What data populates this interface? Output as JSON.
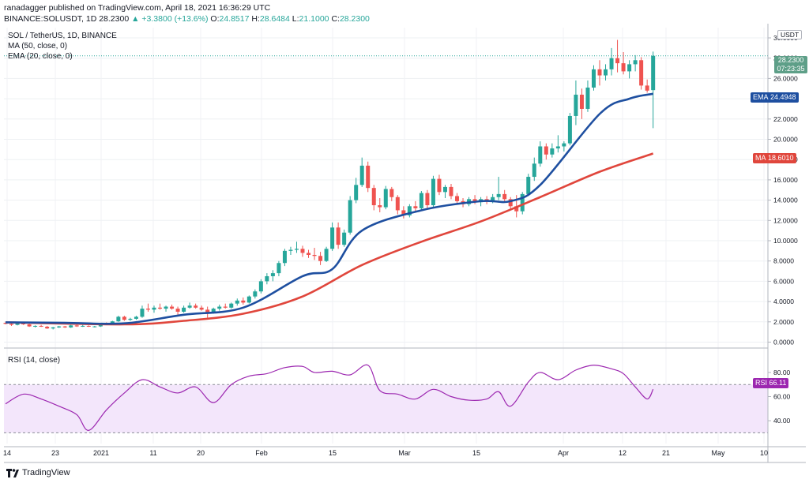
{
  "header": {
    "line1": "ranadagger published on TradingView.com, April 18, 2021 16:36:29 UTC",
    "symbol": "BINANCE:SOLUSDT, 1D",
    "last": "28.2300",
    "change": "+3.3800 (+13.6%)",
    "open": "24.8517",
    "high": "28.6484",
    "low": "21.1000",
    "close": "28.2300",
    "o_label": "O:",
    "h_label": "H:",
    "l_label": "L:",
    "c_label": "C:"
  },
  "legend": {
    "title": "SOL / TetherUS, 1D, BINANCE",
    "ma": "MA (50, close, 0)",
    "ema": "EMA (20, close, 0)",
    "rsi": "RSI (14, close)"
  },
  "price_axis": {
    "currency": "USDT",
    "labels": [
      "30.0000",
      "28.0000",
      "26.0000",
      "24.0000",
      "22.0000",
      "20.0000",
      "18.0000",
      "16.0000",
      "14.0000",
      "12.0000",
      "10.0000",
      "8.0000",
      "6.0000",
      "4.0000",
      "2.0000",
      "0.0000"
    ]
  },
  "tags": {
    "price_value": "28.2300",
    "countdown": "07:23:35",
    "ema_label": "EMA",
    "ema_value": "24.4948",
    "ma_label": "MA",
    "ma_value": "18.6010",
    "rsi_label": "RSI",
    "rsi_value": "66.11"
  },
  "rsi_axis": {
    "labels": [
      "80.00",
      "60.00",
      "40.00"
    ]
  },
  "time_axis": {
    "labels": [
      "14",
      "23",
      "2021",
      "11",
      "20",
      "Feb",
      "15",
      "Mar",
      "15",
      "Apr",
      "12",
      "21",
      "May",
      "10"
    ]
  },
  "footer": {
    "brand": "TradingView"
  },
  "colors": {
    "up": "#26a69a",
    "down": "#ef5350",
    "ema": "#1e4fa0",
    "ma": "#e0463c",
    "rsi": "#9c27b0",
    "rsi_band": "#f3e6fb"
  },
  "chart_data": [
    {
      "type": "candlestick",
      "title": "SOL / TetherUS, 1D, BINANCE",
      "x_range": [
        "2020-12-14",
        "2021-05-10"
      ],
      "ylim": [
        0,
        30
      ],
      "candles_ohlc": [
        [
          1.9,
          1.95,
          1.75,
          1.8
        ],
        [
          1.8,
          1.85,
          1.6,
          1.7
        ],
        [
          1.7,
          1.9,
          1.65,
          1.85
        ],
        [
          1.85,
          1.9,
          1.7,
          1.75
        ],
        [
          1.75,
          1.8,
          1.5,
          1.55
        ],
        [
          1.55,
          1.65,
          1.45,
          1.6
        ],
        [
          1.6,
          1.7,
          1.5,
          1.52
        ],
        [
          1.52,
          1.6,
          1.3,
          1.35
        ],
        [
          1.35,
          1.5,
          1.25,
          1.45
        ],
        [
          1.45,
          1.6,
          1.4,
          1.55
        ],
        [
          1.55,
          1.6,
          1.4,
          1.45
        ],
        [
          1.45,
          1.7,
          1.4,
          1.65
        ],
        [
          1.65,
          1.75,
          1.5,
          1.55
        ],
        [
          1.55,
          1.7,
          1.5,
          1.6
        ],
        [
          1.6,
          1.65,
          1.5,
          1.52
        ],
        [
          1.52,
          1.6,
          1.45,
          1.55
        ],
        [
          1.55,
          1.9,
          1.5,
          1.85
        ],
        [
          1.85,
          1.95,
          1.7,
          1.75
        ],
        [
          1.75,
          2.1,
          1.7,
          2.05
        ],
        [
          2.05,
          2.6,
          2.0,
          2.5
        ],
        [
          2.5,
          2.6,
          2.1,
          2.2
        ],
        [
          2.2,
          2.4,
          2.1,
          2.3
        ],
        [
          2.3,
          2.6,
          2.2,
          2.5
        ],
        [
          2.5,
          3.6,
          2.4,
          3.3
        ],
        [
          3.3,
          3.8,
          3.0,
          3.2
        ],
        [
          3.2,
          3.6,
          2.9,
          3.4
        ],
        [
          3.4,
          3.8,
          3.2,
          3.3
        ],
        [
          3.3,
          3.6,
          3.0,
          3.5
        ],
        [
          3.5,
          3.7,
          3.2,
          3.3
        ],
        [
          3.3,
          3.5,
          2.7,
          3.0
        ],
        [
          3.0,
          3.6,
          2.9,
          3.4
        ],
        [
          3.4,
          3.9,
          3.3,
          3.6
        ],
        [
          3.6,
          3.8,
          3.3,
          3.4
        ],
        [
          3.4,
          3.6,
          3.1,
          3.2
        ],
        [
          3.2,
          3.5,
          2.4,
          2.9
        ],
        [
          2.9,
          3.4,
          2.8,
          3.3
        ],
        [
          3.3,
          3.7,
          3.1,
          3.5
        ],
        [
          3.5,
          3.8,
          3.3,
          3.4
        ],
        [
          3.4,
          3.9,
          3.3,
          3.8
        ],
        [
          3.8,
          4.3,
          3.6,
          4.1
        ],
        [
          4.1,
          4.4,
          3.7,
          3.9
        ],
        [
          3.9,
          4.6,
          3.8,
          4.5
        ],
        [
          4.5,
          5.2,
          4.3,
          5.0
        ],
        [
          5.0,
          6.2,
          4.8,
          6.0
        ],
        [
          6.0,
          6.8,
          5.7,
          6.5
        ],
        [
          6.5,
          7.1,
          6.0,
          6.8
        ],
        [
          6.8,
          8.0,
          6.5,
          7.8
        ],
        [
          7.8,
          9.2,
          7.5,
          9.0
        ],
        [
          9.0,
          9.4,
          8.6,
          9.1
        ],
        [
          9.1,
          9.9,
          8.8,
          9.2
        ],
        [
          9.2,
          9.5,
          8.4,
          8.8
        ],
        [
          8.8,
          9.1,
          8.3,
          8.6
        ],
        [
          8.6,
          9.3,
          8.1,
          8.5
        ],
        [
          8.5,
          8.9,
          7.6,
          8.0
        ],
        [
          8.0,
          9.4,
          7.9,
          9.2
        ],
        [
          9.2,
          11.8,
          9.0,
          11.3
        ],
        [
          11.3,
          11.8,
          9.2,
          9.6
        ],
        [
          9.6,
          11.1,
          9.4,
          10.8
        ],
        [
          10.8,
          14.4,
          10.6,
          14.0
        ],
        [
          14.0,
          16.2,
          13.7,
          15.5
        ],
        [
          15.5,
          18.2,
          15.3,
          17.4
        ],
        [
          17.4,
          17.8,
          14.8,
          15.2
        ],
        [
          15.2,
          15.5,
          13.0,
          13.5
        ],
        [
          13.5,
          14.2,
          12.8,
          13.3
        ],
        [
          13.3,
          15.4,
          13.1,
          15.1
        ],
        [
          15.1,
          15.3,
          13.9,
          14.3
        ],
        [
          14.3,
          14.5,
          12.6,
          13.0
        ],
        [
          13.0,
          13.4,
          12.2,
          12.5
        ],
        [
          12.5,
          13.6,
          12.3,
          13.4
        ],
        [
          13.4,
          13.9,
          12.8,
          13.2
        ],
        [
          13.2,
          14.9,
          13.0,
          14.7
        ],
        [
          14.7,
          15.0,
          13.2,
          13.5
        ],
        [
          13.5,
          16.4,
          13.3,
          16.1
        ],
        [
          16.1,
          16.5,
          14.5,
          14.8
        ],
        [
          14.8,
          15.5,
          14.2,
          15.3
        ],
        [
          15.3,
          15.6,
          14.1,
          14.4
        ],
        [
          14.4,
          14.7,
          13.6,
          13.9
        ],
        [
          13.9,
          14.2,
          13.3,
          13.6
        ],
        [
          13.6,
          14.3,
          13.4,
          14.1
        ],
        [
          14.1,
          14.5,
          13.6,
          13.8
        ],
        [
          13.8,
          14.3,
          13.4,
          14.1
        ],
        [
          14.1,
          14.4,
          13.6,
          13.9
        ],
        [
          13.9,
          14.6,
          13.7,
          14.3
        ],
        [
          14.3,
          16.3,
          14.0,
          14.6
        ],
        [
          14.6,
          15.0,
          13.8,
          14.1
        ],
        [
          14.1,
          14.3,
          13.1,
          13.4
        ],
        [
          13.4,
          14.5,
          12.3,
          12.9
        ],
        [
          12.9,
          14.8,
          12.6,
          14.6
        ],
        [
          14.6,
          16.6,
          14.4,
          16.3
        ],
        [
          16.3,
          18.2,
          15.9,
          17.6
        ],
        [
          17.6,
          19.8,
          17.3,
          19.3
        ],
        [
          19.3,
          19.6,
          18.0,
          18.5
        ],
        [
          18.5,
          19.6,
          18.2,
          19.1
        ],
        [
          19.1,
          20.4,
          18.7,
          19.3
        ],
        [
          19.3,
          19.8,
          18.8,
          19.6
        ],
        [
          19.6,
          22.6,
          19.4,
          22.3
        ],
        [
          22.3,
          25.8,
          21.4,
          24.4
        ],
        [
          24.4,
          25.0,
          22.0,
          23.0
        ],
        [
          23.0,
          25.8,
          22.7,
          25.1
        ],
        [
          25.1,
          27.3,
          24.8,
          26.9
        ],
        [
          26.9,
          27.8,
          25.3,
          26.3
        ],
        [
          26.3,
          27.4,
          25.8,
          26.9
        ],
        [
          26.9,
          29.0,
          26.3,
          28.0
        ],
        [
          28.0,
          29.8,
          26.6,
          27.5
        ],
        [
          27.5,
          28.6,
          26.4,
          26.7
        ],
        [
          26.7,
          27.8,
          26.0,
          27.4
        ],
        [
          27.4,
          28.3,
          26.7,
          27.8
        ],
        [
          27.8,
          28.1,
          24.9,
          25.3
        ],
        [
          25.3,
          25.9,
          24.6,
          24.8
        ],
        [
          24.85,
          28.65,
          21.1,
          28.23
        ]
      ],
      "ema20_points": [
        [
          0,
          1.95
        ],
        [
          10,
          1.9
        ],
        [
          20,
          1.85
        ],
        [
          30,
          2.7
        ],
        [
          40,
          3.4
        ],
        [
          50,
          6.5
        ],
        [
          55,
          7.2
        ],
        [
          60,
          11.0
        ],
        [
          70,
          13.0
        ],
        [
          80,
          13.9
        ],
        [
          85,
          13.9
        ],
        [
          90,
          15.5
        ],
        [
          100,
          22.5
        ],
        [
          105,
          24.0
        ],
        [
          109,
          24.49
        ]
      ],
      "ma50_points": [
        [
          0,
          1.95
        ],
        [
          20,
          1.75
        ],
        [
          30,
          2.1
        ],
        [
          40,
          2.8
        ],
        [
          50,
          4.5
        ],
        [
          60,
          7.6
        ],
        [
          70,
          9.9
        ],
        [
          80,
          11.9
        ],
        [
          90,
          14.3
        ],
        [
          100,
          16.8
        ],
        [
          109,
          18.6
        ]
      ],
      "rsi_points": [
        [
          0,
          54
        ],
        [
          3,
          62
        ],
        [
          6,
          58
        ],
        [
          9,
          52
        ],
        [
          12,
          45
        ],
        [
          14,
          32
        ],
        [
          17,
          49
        ],
        [
          20,
          63
        ],
        [
          23,
          74
        ],
        [
          26,
          68
        ],
        [
          29,
          63
        ],
        [
          32,
          68
        ],
        [
          35,
          55
        ],
        [
          38,
          70
        ],
        [
          41,
          77
        ],
        [
          44,
          79
        ],
        [
          47,
          84
        ],
        [
          50,
          85
        ],
        [
          52,
          80
        ],
        [
          55,
          81
        ],
        [
          58,
          78
        ],
        [
          61,
          86
        ],
        [
          63,
          65
        ],
        [
          66,
          62
        ],
        [
          69,
          58
        ],
        [
          72,
          66
        ],
        [
          75,
          60
        ],
        [
          78,
          57
        ],
        [
          81,
          58
        ],
        [
          83,
          64
        ],
        [
          85,
          52
        ],
        [
          88,
          72
        ],
        [
          90,
          80
        ],
        [
          93,
          74
        ],
        [
          96,
          82
        ],
        [
          99,
          86
        ],
        [
          102,
          83
        ],
        [
          104,
          79
        ],
        [
          106,
          68
        ],
        [
          108,
          58
        ],
        [
          109,
          66.11
        ]
      ],
      "rsi_levels": [
        30,
        70
      ],
      "rsi_ylim": [
        25,
        95
      ]
    }
  ]
}
